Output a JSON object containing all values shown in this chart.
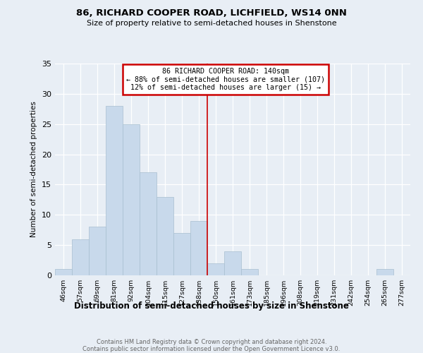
{
  "title": "86, RICHARD COOPER ROAD, LICHFIELD, WS14 0NN",
  "subtitle": "Size of property relative to semi-detached houses in Shenstone",
  "xlabel": "Distribution of semi-detached houses by size in Shenstone",
  "ylabel": "Number of semi-detached properties",
  "bin_labels": [
    "46sqm",
    "57sqm",
    "69sqm",
    "81sqm",
    "92sqm",
    "104sqm",
    "115sqm",
    "127sqm",
    "138sqm",
    "150sqm",
    "161sqm",
    "173sqm",
    "185sqm",
    "196sqm",
    "208sqm",
    "219sqm",
    "231sqm",
    "242sqm",
    "254sqm",
    "265sqm",
    "277sqm"
  ],
  "bar_values": [
    1,
    6,
    8,
    28,
    25,
    17,
    13,
    7,
    9,
    2,
    4,
    1,
    0,
    0,
    0,
    0,
    0,
    0,
    0,
    1,
    0
  ],
  "bar_color": "#c8d9eb",
  "bar_edge_color": "#a8bfd0",
  "annotation_line1": "86 RICHARD COOPER ROAD: 140sqm",
  "annotation_line2": "← 88% of semi-detached houses are smaller (107)",
  "annotation_line3": "12% of semi-detached houses are larger (15) →",
  "annotation_box_color": "#ffffff",
  "annotation_box_edge": "#cc0000",
  "vline_color": "#cc0000",
  "footer_line1": "Contains HM Land Registry data © Crown copyright and database right 2024.",
  "footer_line2": "Contains public sector information licensed under the Open Government Licence v3.0.",
  "background_color": "#e8eef5",
  "plot_background": "#e8eef5",
  "ylim": [
    0,
    35
  ],
  "yticks": [
    0,
    5,
    10,
    15,
    20,
    25,
    30,
    35
  ]
}
